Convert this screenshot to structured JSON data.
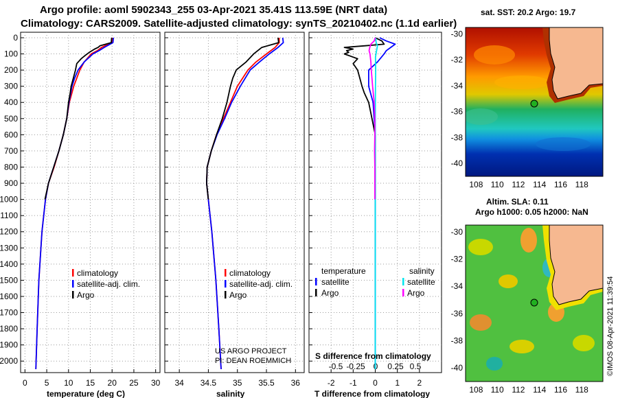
{
  "header": {
    "title_line1": "Argo profile: aoml 5902343_255 03-Apr-2021 35.41S 113.59E (NRT data)",
    "title_line2": "Climatology: CARS2009. Satellite-adjusted climatology: synTS_20210402.nc (1.1d earlier)"
  },
  "colors": {
    "climatology": "#ff0000",
    "satellite": "#0000ff",
    "argo": "#000000",
    "sat_salinity": "#00e5ee",
    "argo_salinity": "#ff00ff",
    "land": "#f6b890"
  },
  "depth_axis": {
    "ylim": [
      0,
      2050
    ],
    "ticks": [
      0,
      100,
      200,
      300,
      400,
      500,
      600,
      700,
      800,
      900,
      1000,
      1100,
      1200,
      1300,
      1400,
      1500,
      1600,
      1700,
      1800,
      1900,
      2000
    ],
    "tick_labels": [
      "0",
      "100",
      "200",
      "300",
      "400",
      "500",
      "600",
      "700",
      "800",
      "900",
      "1000",
      "1100",
      "1200",
      "1300",
      "1400",
      "1500",
      "1600",
      "1700",
      "1800",
      "1900",
      "2000"
    ]
  },
  "chart_data": [
    {
      "id": "temperature",
      "type": "line",
      "xlabel": "temperature (deg C)",
      "xlim": [
        -1,
        31
      ],
      "xticks": [
        0,
        5,
        10,
        15,
        20,
        25,
        30
      ],
      "xtick_labels": [
        "0",
        "5",
        "10",
        "15",
        "20",
        "25",
        "30"
      ],
      "legend": [
        "climatology",
        "satellite-adj. clim.",
        "Argo"
      ],
      "series": [
        {
          "name": "climatology",
          "color": "#ff0000",
          "depth": [
            0,
            30,
            60,
            80,
            100,
            150,
            200,
            250,
            300,
            400,
            500,
            600,
            700,
            800,
            900,
            1000,
            1200,
            1500,
            1800,
            2050
          ],
          "values": [
            20.1,
            19.9,
            17.6,
            16.6,
            15.2,
            13.6,
            12.6,
            11.9,
            11.2,
            10.2,
            9.6,
            8.8,
            7.8,
            6.7,
            5.4,
            4.7,
            3.9,
            3.2,
            2.8,
            2.5
          ]
        },
        {
          "name": "satellite-adj. clim.",
          "color": "#0000ff",
          "depth": [
            0,
            30,
            60,
            80,
            100,
            150,
            200,
            250,
            300,
            400,
            500,
            600,
            700,
            800,
            900,
            1000,
            1200,
            1500,
            1800,
            2050
          ],
          "values": [
            20.3,
            20.2,
            18.2,
            17.0,
            15.6,
            13.6,
            12.2,
            11.4,
            10.8,
            10.1,
            9.6,
            8.8,
            7.8,
            6.6,
            5.4,
            4.7,
            3.9,
            3.2,
            2.8,
            2.5
          ]
        },
        {
          "name": "Argo",
          "color": "#000000",
          "depth": [
            0,
            30,
            50,
            60,
            70,
            90,
            110,
            130,
            160,
            200,
            250,
            300,
            340,
            400,
            500,
            600,
            700,
            800,
            900,
            1000
          ],
          "values": [
            19.9,
            19.8,
            17.2,
            16.8,
            16.0,
            14.8,
            13.8,
            12.9,
            11.9,
            11.6,
            11.1,
            10.6,
            10.4,
            10.0,
            9.6,
            8.8,
            7.8,
            6.6,
            5.4,
            4.6
          ]
        }
      ]
    },
    {
      "id": "salinity",
      "type": "line",
      "xlabel": "salinity",
      "xlim": [
        33.75,
        36.15
      ],
      "xticks": [
        34,
        34.5,
        35,
        35.5,
        36
      ],
      "xtick_labels": [
        "34",
        "34.5",
        "35",
        "35.5",
        "36"
      ],
      "legend": [
        "climatology",
        "satellite-adj. clim.",
        "Argo"
      ],
      "series": [
        {
          "name": "climatology",
          "color": "#ff0000",
          "depth": [
            0,
            30,
            60,
            100,
            150,
            200,
            300,
            400,
            500,
            600,
            700,
            800,
            900,
            1000,
            1200,
            1500,
            1800,
            2050
          ],
          "values": [
            35.72,
            35.72,
            35.65,
            35.5,
            35.32,
            35.18,
            35.0,
            34.88,
            34.76,
            34.64,
            34.55,
            34.48,
            34.47,
            34.5,
            34.56,
            34.63,
            34.68,
            34.72
          ]
        },
        {
          "name": "satellite-adj. clim.",
          "color": "#0000ff",
          "depth": [
            0,
            30,
            60,
            100,
            150,
            200,
            300,
            400,
            500,
            600,
            700,
            800,
            900,
            1000,
            1200,
            1500,
            1800,
            2050
          ],
          "values": [
            35.78,
            35.79,
            35.7,
            35.55,
            35.38,
            35.22,
            35.05,
            34.9,
            34.78,
            34.65,
            34.55,
            34.48,
            34.47,
            34.5,
            34.56,
            34.63,
            34.68,
            34.72
          ]
        },
        {
          "name": "Argo",
          "color": "#000000",
          "depth": [
            0,
            30,
            60,
            100,
            150,
            200,
            250,
            300,
            400,
            500,
            600,
            700,
            800,
            900,
            1000
          ],
          "values": [
            35.7,
            35.71,
            35.42,
            35.28,
            35.15,
            34.98,
            34.92,
            34.88,
            34.82,
            34.74,
            34.64,
            34.55,
            34.48,
            34.47,
            34.5
          ]
        }
      ],
      "annotation": [
        "US ARGO PROJECT",
        "PI: DEAN ROEMMICH"
      ]
    },
    {
      "id": "difference",
      "type": "line",
      "xlabel": "T difference from climatology",
      "xlim": [
        -3,
        3
      ],
      "xticks": [
        -2,
        -1,
        0,
        1,
        2
      ],
      "xtick_labels": [
        "-2",
        "-1",
        "0",
        "1",
        "2"
      ],
      "top_axis_label": "S difference from climatology",
      "s_ticks": [
        -0.5,
        -0.25,
        0,
        0.25,
        0.5
      ],
      "s_tick_labels": [
        "-0.5",
        "-0.25",
        "0",
        "0.25",
        "0.5"
      ],
      "legend_left_title": "temperature",
      "legend_right_title": "salinity",
      "legend": [
        "satellite",
        "Argo",
        "satellite",
        "Argo"
      ],
      "series": [
        {
          "name": "T satellite",
          "color": "#0000ff",
          "depth": [
            0,
            20,
            40,
            60,
            80,
            100,
            150,
            200,
            300,
            400,
            600,
            800,
            1000,
            1500,
            2050
          ],
          "values": [
            0.2,
            0.5,
            0.9,
            0.7,
            0.5,
            0.4,
            0.1,
            -0.3,
            -0.3,
            -0.1,
            0,
            0,
            0,
            0,
            0
          ]
        },
        {
          "name": "T Argo",
          "color": "#000000",
          "depth": [
            0,
            20,
            40,
            50,
            60,
            70,
            80,
            90,
            100,
            130,
            160,
            200,
            250,
            300,
            340,
            400,
            500,
            600,
            700,
            800,
            900,
            1000
          ],
          "values": [
            0.0,
            0.3,
            0.4,
            -0.5,
            -1.4,
            -1.0,
            -1.3,
            -1.2,
            -1.4,
            -0.8,
            -1.0,
            -0.8,
            -0.7,
            -0.6,
            -0.5,
            -0.3,
            -0.15,
            0.0,
            0.0,
            0.0,
            0.0,
            0.0
          ]
        },
        {
          "name": "S satellite",
          "color": "#00e5ee",
          "depth": [
            0,
            30,
            50,
            80,
            120,
            200,
            300,
            500,
            1000,
            2050
          ],
          "values": [
            0.02,
            0.04,
            0.1,
            0.06,
            0.01,
            0.02,
            0.01,
            0.0,
            0.0,
            0.0
          ]
        },
        {
          "name": "S Argo",
          "color": "#ff00ff",
          "depth": [
            0,
            20,
            40,
            60,
            80,
            100,
            150,
            200,
            250,
            300,
            400,
            500,
            600,
            700,
            800,
            900,
            1000
          ],
          "values": [
            0.0,
            -0.05,
            -0.2,
            -0.25,
            -0.28,
            -0.24,
            -0.2,
            -0.18,
            -0.15,
            -0.12,
            -0.05,
            -0.02,
            -0.02,
            -0.03,
            -0.02,
            -0.02,
            -0.02
          ]
        }
      ]
    },
    {
      "id": "sst_map",
      "type": "heatmap",
      "title": "sat. SST: 20.2 Argo: 19.7",
      "lon_range": [
        107,
        120
      ],
      "lat_range": [
        -41,
        -29.5
      ],
      "xticks": [
        108,
        110,
        112,
        114,
        116,
        118
      ],
      "xtick_labels": [
        "108",
        "110",
        "112",
        "114",
        "116",
        "118"
      ],
      "yticks": [
        -30,
        -32,
        -34,
        -36,
        -38,
        -40
      ],
      "ytick_labels": [
        "-30",
        "-32",
        "-34",
        "-36",
        "-38",
        "-40"
      ],
      "marker": {
        "lon": 113.59,
        "lat": -35.41
      }
    },
    {
      "id": "sla_map",
      "type": "heatmap",
      "title_line1": "Altim. SLA: 0.11",
      "title_line2": "Argo h1000: 0.05 h2000: NaN",
      "lon_range": [
        107,
        120
      ],
      "lat_range": [
        -41,
        -29.5
      ],
      "xticks": [
        108,
        110,
        112,
        114,
        116,
        118
      ],
      "xtick_labels": [
        "108",
        "110",
        "112",
        "114",
        "116",
        "118"
      ],
      "yticks": [
        -30,
        -32,
        -34,
        -36,
        -38,
        -40
      ],
      "ytick_labels": [
        "-30",
        "-32",
        "-34",
        "-36",
        "-38",
        "-40"
      ],
      "marker": {
        "lon": 113.59,
        "lat": -35.41
      }
    }
  ],
  "credit": "©IMOS 08-Apr-2021 11:39:54"
}
